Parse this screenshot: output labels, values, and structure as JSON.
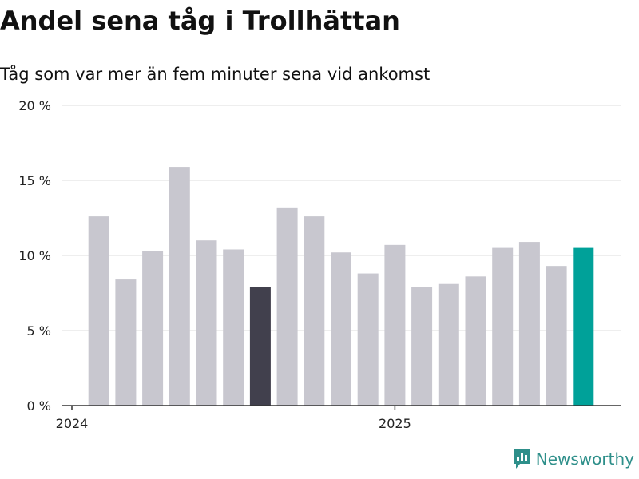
{
  "header": {
    "title": "Andel sena tåg i Trollhättan",
    "subtitle": "Tåg som var mer än fem minuter sena vid ankomst"
  },
  "brand": {
    "name": "Newsworthy",
    "logo_icon": "newsworthy-chart-logo-icon",
    "color": "#2e8f8a"
  },
  "colors": {
    "default_bar": "#c8c7cf",
    "highlight_dark": "#41404d",
    "highlight_latest": "#00a199",
    "grid": "#dddddd",
    "axis": "#333333"
  },
  "chart_data": {
    "type": "bar",
    "title": "Andel sena tåg i Trollhättan",
    "subtitle": "Tåg som var mer än fem minuter sena vid ankomst",
    "xlabel": "",
    "ylabel": "",
    "ylim": [
      0,
      20
    ],
    "y_ticks": [
      0,
      5,
      10,
      15,
      20
    ],
    "y_tick_labels": [
      "0 %",
      "5 %",
      "10 %",
      "15 %",
      "20 %"
    ],
    "x_tick_labels": [
      {
        "label": "2024",
        "at_index": 0
      },
      {
        "label": "2025",
        "at_index": 12
      }
    ],
    "grid": true,
    "legend": "none",
    "values": [
      12.6,
      8.4,
      10.3,
      15.9,
      11.0,
      10.4,
      7.9,
      13.2,
      12.6,
      10.2,
      8.8,
      10.7,
      7.9,
      8.1,
      8.6,
      10.5,
      10.9,
      9.3,
      10.5
    ],
    "highlight": [
      {
        "index": 6,
        "color": "#41404d"
      },
      {
        "index": 18,
        "color": "#00a199"
      }
    ]
  }
}
